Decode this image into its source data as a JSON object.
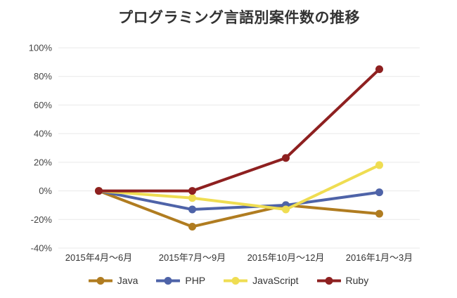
{
  "title": "プログラミング言語別案件数の推移",
  "chart_data": {
    "type": "line",
    "title": "プログラミング言語別案件数の推移",
    "categories": [
      "2015年4月〜6月",
      "2015年7月〜9月",
      "2015年10月〜12月",
      "2016年1月〜3月"
    ],
    "series": [
      {
        "name": "Java",
        "color": "#B07C20",
        "values": [
          0,
          -25,
          -10,
          -16
        ]
      },
      {
        "name": "PHP",
        "color": "#4E63A8",
        "values": [
          0,
          -13,
          -10,
          -1
        ]
      },
      {
        "name": "JavaScript",
        "color": "#EFDD52",
        "values": [
          0,
          -5,
          -13,
          18
        ]
      },
      {
        "name": "Ruby",
        "color": "#8E2020",
        "values": [
          0,
          0,
          23,
          85
        ]
      }
    ],
    "ylim": [
      -40,
      100
    ],
    "ytick_step": 20,
    "ytick_suffix": "%",
    "xlabel": "",
    "ylabel": "",
    "grid": true,
    "legend_position": "bottom"
  },
  "colors": {
    "background": "#FFFFFF",
    "grid": "#E9E9E9",
    "tick_text": "#444444",
    "title_text": "#333333"
  }
}
